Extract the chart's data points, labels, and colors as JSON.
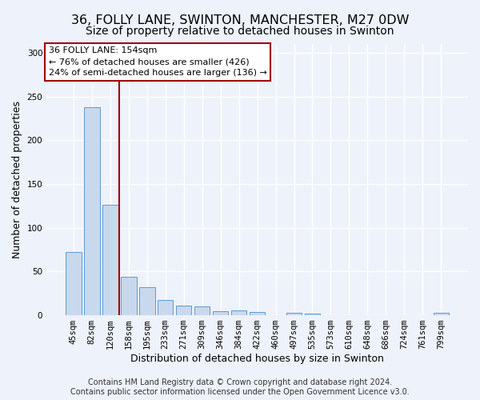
{
  "title1": "36, FOLLY LANE, SWINTON, MANCHESTER, M27 0DW",
  "title2": "Size of property relative to detached houses in Swinton",
  "xlabel": "Distribution of detached houses by size in Swinton",
  "ylabel": "Number of detached properties",
  "categories": [
    "45sqm",
    "82sqm",
    "120sqm",
    "158sqm",
    "195sqm",
    "233sqm",
    "271sqm",
    "309sqm",
    "346sqm",
    "384sqm",
    "422sqm",
    "460sqm",
    "497sqm",
    "535sqm",
    "573sqm",
    "610sqm",
    "648sqm",
    "686sqm",
    "724sqm",
    "761sqm",
    "799sqm"
  ],
  "values": [
    72,
    238,
    126,
    44,
    32,
    17,
    11,
    10,
    5,
    6,
    4,
    0,
    3,
    2,
    0,
    0,
    0,
    0,
    0,
    0,
    3
  ],
  "bar_color": "#c8d9ee",
  "bar_edge_color": "#5b9bd5",
  "vline_x": 2.5,
  "vline_color": "#a00000",
  "annotation_line1": "36 FOLLY LANE: 154sqm",
  "annotation_line2": "← 76% of detached houses are smaller (426)",
  "annotation_line3": "24% of semi-detached houses are larger (136) →",
  "annotation_box_color": "white",
  "annotation_box_edge_color": "#a00000",
  "ylim": [
    0,
    310
  ],
  "yticks": [
    0,
    50,
    100,
    150,
    200,
    250,
    300
  ],
  "footer_text": "Contains HM Land Registry data © Crown copyright and database right 2024.\nContains public sector information licensed under the Open Government Licence v3.0.",
  "background_color": "#eef2fa",
  "grid_color": "#ffffff",
  "title1_fontsize": 11.5,
  "title2_fontsize": 10,
  "axis_label_fontsize": 9,
  "tick_fontsize": 7.5,
  "footer_fontsize": 7
}
